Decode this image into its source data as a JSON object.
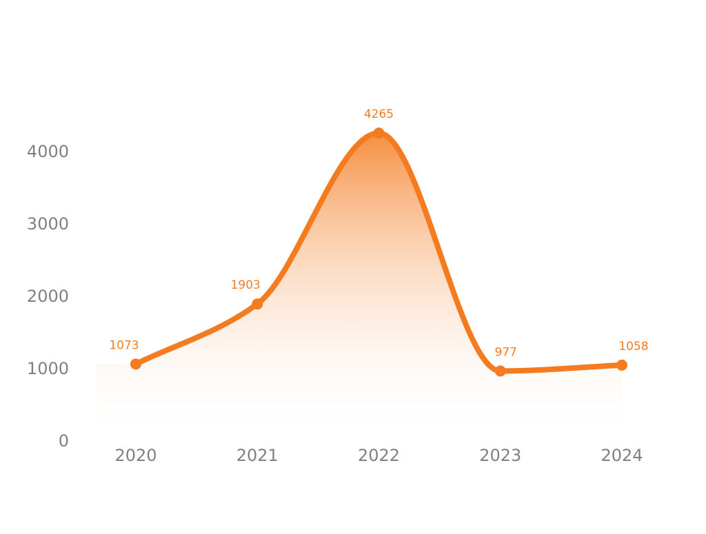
{
  "chart_data": {
    "type": "area",
    "categories": [
      "2020",
      "2021",
      "2022",
      "2023",
      "2024"
    ],
    "values": [
      1073,
      1903,
      4265,
      977,
      1058
    ],
    "title": "",
    "xlabel": "",
    "ylabel": "",
    "ylim": [
      0,
      4000
    ],
    "yticks": [
      0,
      1000,
      2000,
      3000,
      4000
    ],
    "grid": false,
    "legend": "none",
    "colors": {
      "line": "#F47B20",
      "fill_top": "#F47B20",
      "fill_bottom": "#FFFFFF",
      "axis_text": "#808080"
    }
  }
}
